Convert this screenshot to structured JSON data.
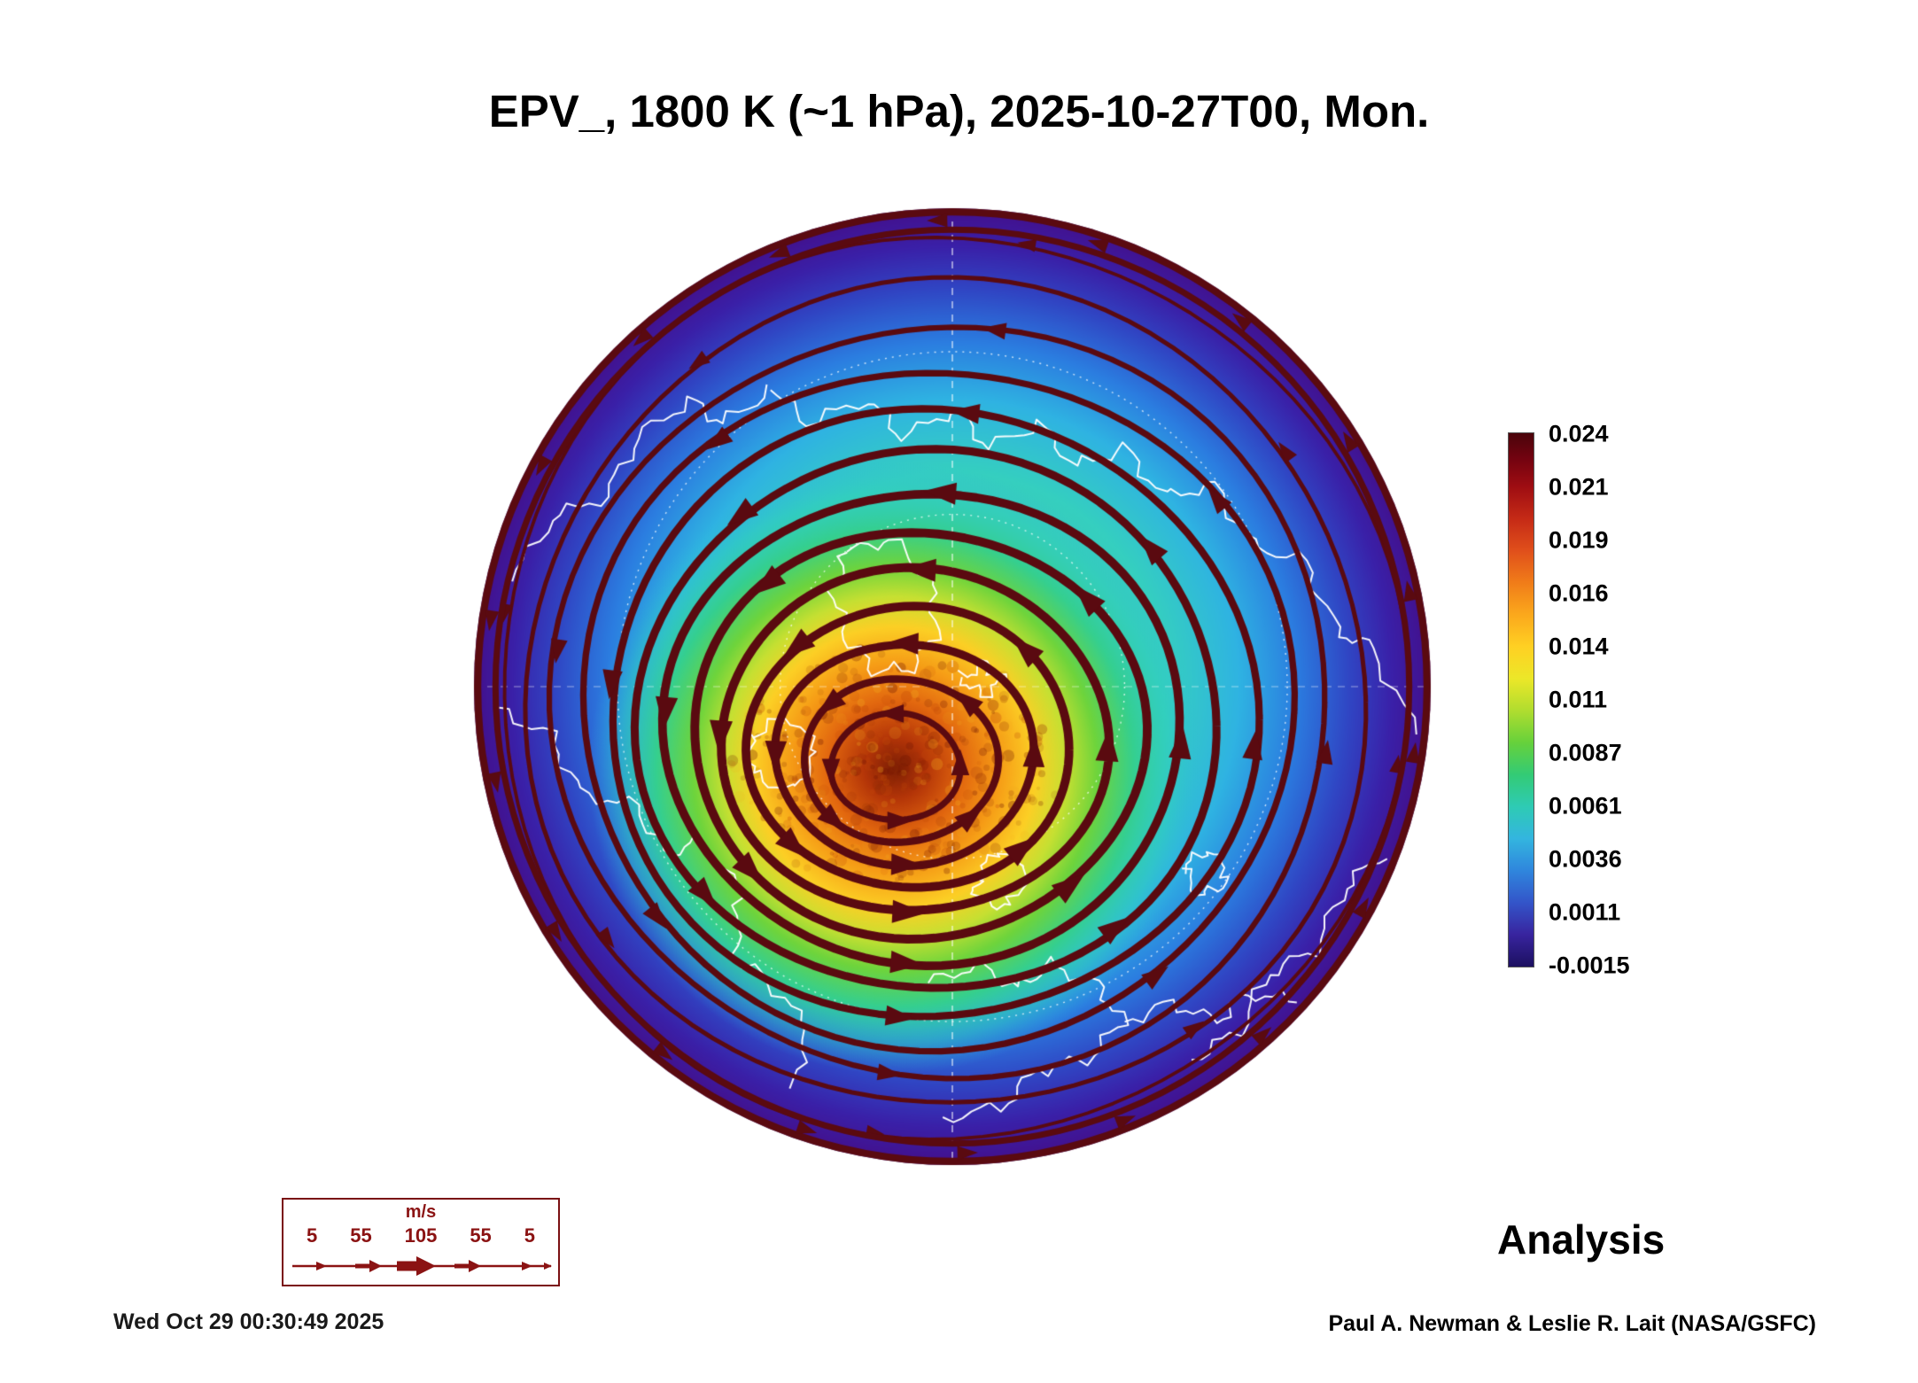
{
  "title": "EPV_, 1800 K (~1 hPa), 2025-10-27T00, Mon.",
  "analysis_label": "Analysis",
  "credit": "Paul A. Newman & Leslie R. Lait (NASA/GSFC)",
  "timestamp": "Wed Oct 29 00:30:49 2025",
  "colorbar": {
    "ticks": [
      "0.024",
      "0.021",
      "0.019",
      "0.016",
      "0.014",
      "0.011",
      "0.0087",
      "0.0061",
      "0.0036",
      "0.0011",
      "-0.0015"
    ],
    "gradient": [
      [
        0,
        "#4a040b"
      ],
      [
        0.05,
        "#750310"
      ],
      [
        0.1,
        "#9e0d12"
      ],
      [
        0.16,
        "#c52a16"
      ],
      [
        0.22,
        "#e04f1b"
      ],
      [
        0.28,
        "#f07c19"
      ],
      [
        0.34,
        "#fba81c"
      ],
      [
        0.4,
        "#ffd023"
      ],
      [
        0.46,
        "#ece728"
      ],
      [
        0.52,
        "#b0dd2f"
      ],
      [
        0.58,
        "#66d13b"
      ],
      [
        0.64,
        "#33cb75"
      ],
      [
        0.7,
        "#2ecbb4"
      ],
      [
        0.76,
        "#33b5df"
      ],
      [
        0.82,
        "#2f86dd"
      ],
      [
        0.88,
        "#3355c9"
      ],
      [
        0.94,
        "#38249f"
      ],
      [
        1,
        "#1c1060"
      ]
    ]
  },
  "wind_legend": {
    "unit": "m/s",
    "values": [
      "5",
      "55",
      "105",
      "55",
      "5"
    ]
  },
  "chart_data": {
    "type": "heatmap",
    "title": "EPV_, 1800 K (~1 hPa), 2025-10-27T00, Mon.",
    "field": "Ertel potential vorticity with wind streamlines",
    "level": "1800 K (~1 hPa)",
    "valid_time": "2025-10-27T00",
    "day_of_week": "Mon.",
    "product": "Analysis",
    "projection": "north polar stereographic",
    "colorbar_ticks": [
      0.024,
      0.021,
      0.019,
      0.016,
      0.014,
      0.011,
      0.0087,
      0.0061,
      0.0036,
      0.0011,
      -0.0015
    ],
    "colorbar_range": [
      -0.0015,
      0.024
    ],
    "wind_speed_scale_ms": [
      5,
      55,
      105,
      55,
      5
    ],
    "observed_features": {
      "vortex_core_epv_approx": 0.022,
      "vortex_center_offset_of_radius": [
        -0.12,
        0.17
      ],
      "outer_region_epv_approx": 0.001,
      "circulation": "counterclockwise",
      "graticule": "white dashed meridian/latitude lines",
      "coastline_color": "#ffffff"
    },
    "render": {
      "background_stops": [
        [
          0,
          "#49c98e"
        ],
        [
          0.45,
          "#35cfc0"
        ],
        [
          0.6,
          "#2fb3e2"
        ],
        [
          0.72,
          "#2b7de0"
        ],
        [
          0.83,
          "#3046c4"
        ],
        [
          0.92,
          "#3a20a8"
        ],
        [
          1,
          "#43108c"
        ]
      ],
      "vortex_offset": [
        -0.12,
        0.17
      ],
      "vortex_radius": 0.64,
      "vortex_stops": [
        [
          0,
          "#7c1e04"
        ],
        [
          0.1,
          "#b43508"
        ],
        [
          0.22,
          "#e2670f"
        ],
        [
          0.34,
          "#f69c16"
        ],
        [
          0.46,
          "#fccf25"
        ],
        [
          0.56,
          "#c6e032"
        ],
        [
          0.66,
          "#6ed43c"
        ],
        [
          0.78,
          "#35cf8f"
        ],
        [
          0.9,
          "rgba(48,207,190,0.5)"
        ],
        [
          1,
          "rgba(48,183,226,0)"
        ]
      ],
      "speckle": {
        "count": 420,
        "colors": [
          "#6b1202",
          "#8f2a05",
          "#c24a08",
          "#f2a81e"
        ]
      },
      "streamline_color": "#5a0a10",
      "streamline_loops": 13,
      "coastlines": [
        [
          [
            0.97,
            0.1
          ],
          [
            0.88,
            -0.08
          ],
          [
            0.8,
            -0.12
          ],
          [
            0.74,
            -0.26
          ],
          [
            0.62,
            -0.3
          ],
          [
            0.55,
            -0.42
          ],
          [
            0.44,
            -0.4
          ],
          [
            0.36,
            -0.5
          ],
          [
            0.26,
            -0.46
          ],
          [
            0.18,
            -0.55
          ],
          [
            0.08,
            -0.5
          ],
          [
            0.0,
            -0.58
          ],
          [
            -0.1,
            -0.52
          ],
          [
            -0.18,
            -0.6
          ],
          [
            -0.3,
            -0.55
          ],
          [
            -0.38,
            -0.62
          ]
        ],
        [
          [
            -0.38,
            -0.62
          ],
          [
            -0.48,
            -0.55
          ],
          [
            -0.55,
            -0.6
          ],
          [
            -0.66,
            -0.52
          ],
          [
            -0.72,
            -0.4
          ],
          [
            -0.84,
            -0.35
          ],
          [
            -0.92,
            -0.22
          ]
        ],
        [
          [
            -0.95,
            0.05
          ],
          [
            -0.84,
            0.1
          ],
          [
            -0.78,
            0.22
          ],
          [
            -0.66,
            0.25
          ],
          [
            -0.6,
            0.35
          ],
          [
            -0.52,
            0.32
          ],
          [
            -0.44,
            0.44
          ],
          [
            -0.46,
            0.56
          ],
          [
            -0.38,
            0.62
          ],
          [
            -0.3,
            0.72
          ],
          [
            -0.34,
            0.84
          ]
        ],
        [
          [
            -0.42,
            0.1
          ],
          [
            -0.34,
            0.06
          ],
          [
            -0.28,
            0.14
          ],
          [
            -0.34,
            0.22
          ],
          [
            -0.42,
            0.18
          ],
          [
            -0.42,
            0.1
          ]
        ],
        [
          [
            -0.22,
            -0.28
          ],
          [
            -0.13,
            -0.31
          ],
          [
            -0.05,
            -0.23
          ],
          [
            -0.03,
            -0.12
          ],
          [
            -0.08,
            -0.04
          ],
          [
            -0.16,
            -0.03
          ],
          [
            -0.22,
            -0.1
          ],
          [
            -0.25,
            -0.2
          ],
          [
            -0.22,
            -0.28
          ]
        ],
        [
          [
            0.02,
            -0.02
          ],
          [
            0.07,
            -0.05
          ],
          [
            0.11,
            -0.01
          ],
          [
            0.06,
            0.02
          ],
          [
            0.02,
            -0.02
          ]
        ],
        [
          [
            0.05,
            0.4
          ],
          [
            0.1,
            0.34
          ],
          [
            0.16,
            0.38
          ],
          [
            0.12,
            0.46
          ],
          [
            0.05,
            0.44
          ],
          [
            0.05,
            0.4
          ]
        ],
        [
          [
            -0.05,
            0.62
          ],
          [
            0.05,
            0.58
          ],
          [
            0.14,
            0.63
          ],
          [
            0.2,
            0.58
          ],
          [
            0.3,
            0.62
          ],
          [
            0.36,
            0.7
          ],
          [
            0.28,
            0.78
          ],
          [
            0.18,
            0.8
          ],
          [
            0.1,
            0.88
          ],
          [
            -0.02,
            0.9
          ]
        ],
        [
          [
            0.36,
            0.7
          ],
          [
            0.46,
            0.66
          ],
          [
            0.55,
            0.7
          ],
          [
            0.62,
            0.64
          ],
          [
            0.72,
            0.66
          ]
        ],
        [
          [
            0.48,
            0.38
          ],
          [
            0.54,
            0.34
          ],
          [
            0.58,
            0.4
          ],
          [
            0.52,
            0.44
          ],
          [
            0.48,
            0.38
          ]
        ],
        [
          [
            0.9,
            0.35
          ],
          [
            0.82,
            0.42
          ],
          [
            0.76,
            0.55
          ],
          [
            0.66,
            0.6
          ],
          [
            0.6,
            0.72
          ],
          [
            0.5,
            0.78
          ]
        ]
      ]
    }
  }
}
